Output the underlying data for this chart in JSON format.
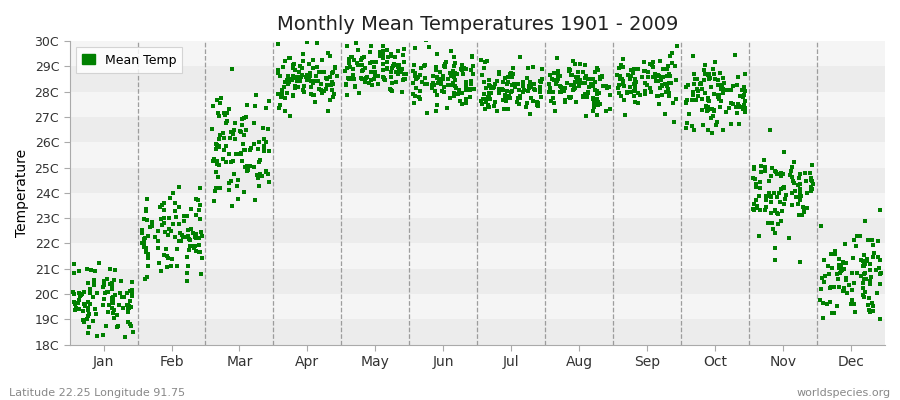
{
  "title": "Monthly Mean Temperatures 1901 - 2009",
  "ylabel": "Temperature",
  "subtitle": "Latitude 22.25 Longitude 91.75",
  "watermark": "worldspecies.org",
  "dot_color": "#008000",
  "dot_size": 5,
  "bg_color": "#f0f0f0",
  "ylim": [
    18,
    30
  ],
  "yticks": [
    18,
    19,
    20,
    21,
    22,
    23,
    24,
    25,
    26,
    27,
    28,
    29,
    30
  ],
  "ytick_labels": [
    "18C",
    "19C",
    "20C",
    "21C",
    "22C",
    "23C",
    "24C",
    "25C",
    "26C",
    "27C",
    "28C",
    "29C",
    "30C"
  ],
  "month_names": [
    "Jan",
    "Feb",
    "Mar",
    "Apr",
    "May",
    "Jun",
    "Jul",
    "Aug",
    "Sep",
    "Oct",
    "Nov",
    "Dec"
  ],
  "n_years": 109,
  "month_means": [
    19.8,
    22.2,
    25.8,
    28.5,
    28.8,
    28.4,
    28.1,
    28.2,
    28.4,
    27.8,
    24.0,
    20.8
  ],
  "month_stds": [
    0.75,
    0.85,
    1.0,
    0.55,
    0.55,
    0.55,
    0.5,
    0.5,
    0.55,
    0.6,
    0.9,
    0.95
  ],
  "legend_label": "Mean Temp",
  "band_colors": [
    "#ececec",
    "#f5f5f5"
  ],
  "vline_color": "#888888",
  "grid_color": "#ffffff",
  "title_fontsize": 14,
  "axis_fontsize": 9,
  "xlabel_fontsize": 10
}
